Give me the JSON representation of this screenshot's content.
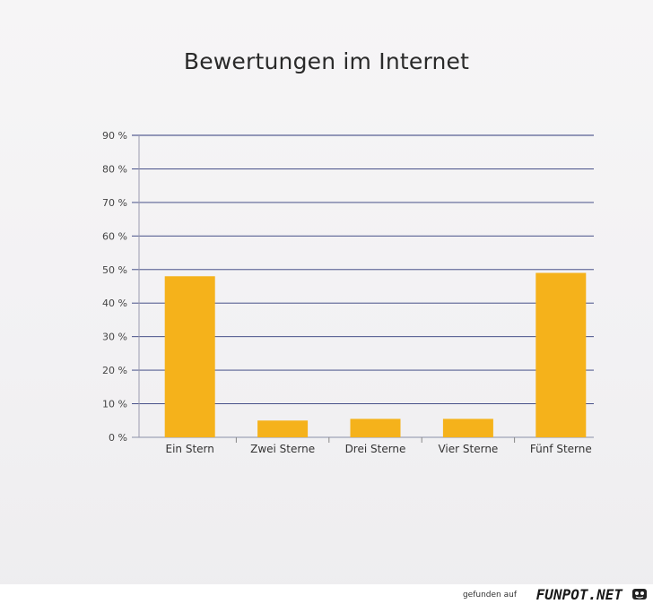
{
  "chart_data": {
    "type": "bar",
    "title": "Bewertungen im Internet",
    "categories": [
      "Ein Stern",
      "Zwei Sterne",
      "Drei Sterne",
      "Vier Sterne",
      "Fünf Sterne"
    ],
    "values": [
      48,
      5,
      5.5,
      5.5,
      49
    ],
    "yticks": [
      "0 %",
      "10 %",
      "20 %",
      "30 %",
      "40 %",
      "50 %",
      "60 %",
      "70 %",
      "80 %",
      "90 %"
    ],
    "ylim": [
      0,
      90
    ],
    "grid": true,
    "bar_color": "#f5b21b",
    "grid_color": "#2f3a7a"
  },
  "footer": {
    "text": "gefunden auf",
    "logo": "FUNPOT.NET",
    "icon": "funpot-logo-icon"
  }
}
